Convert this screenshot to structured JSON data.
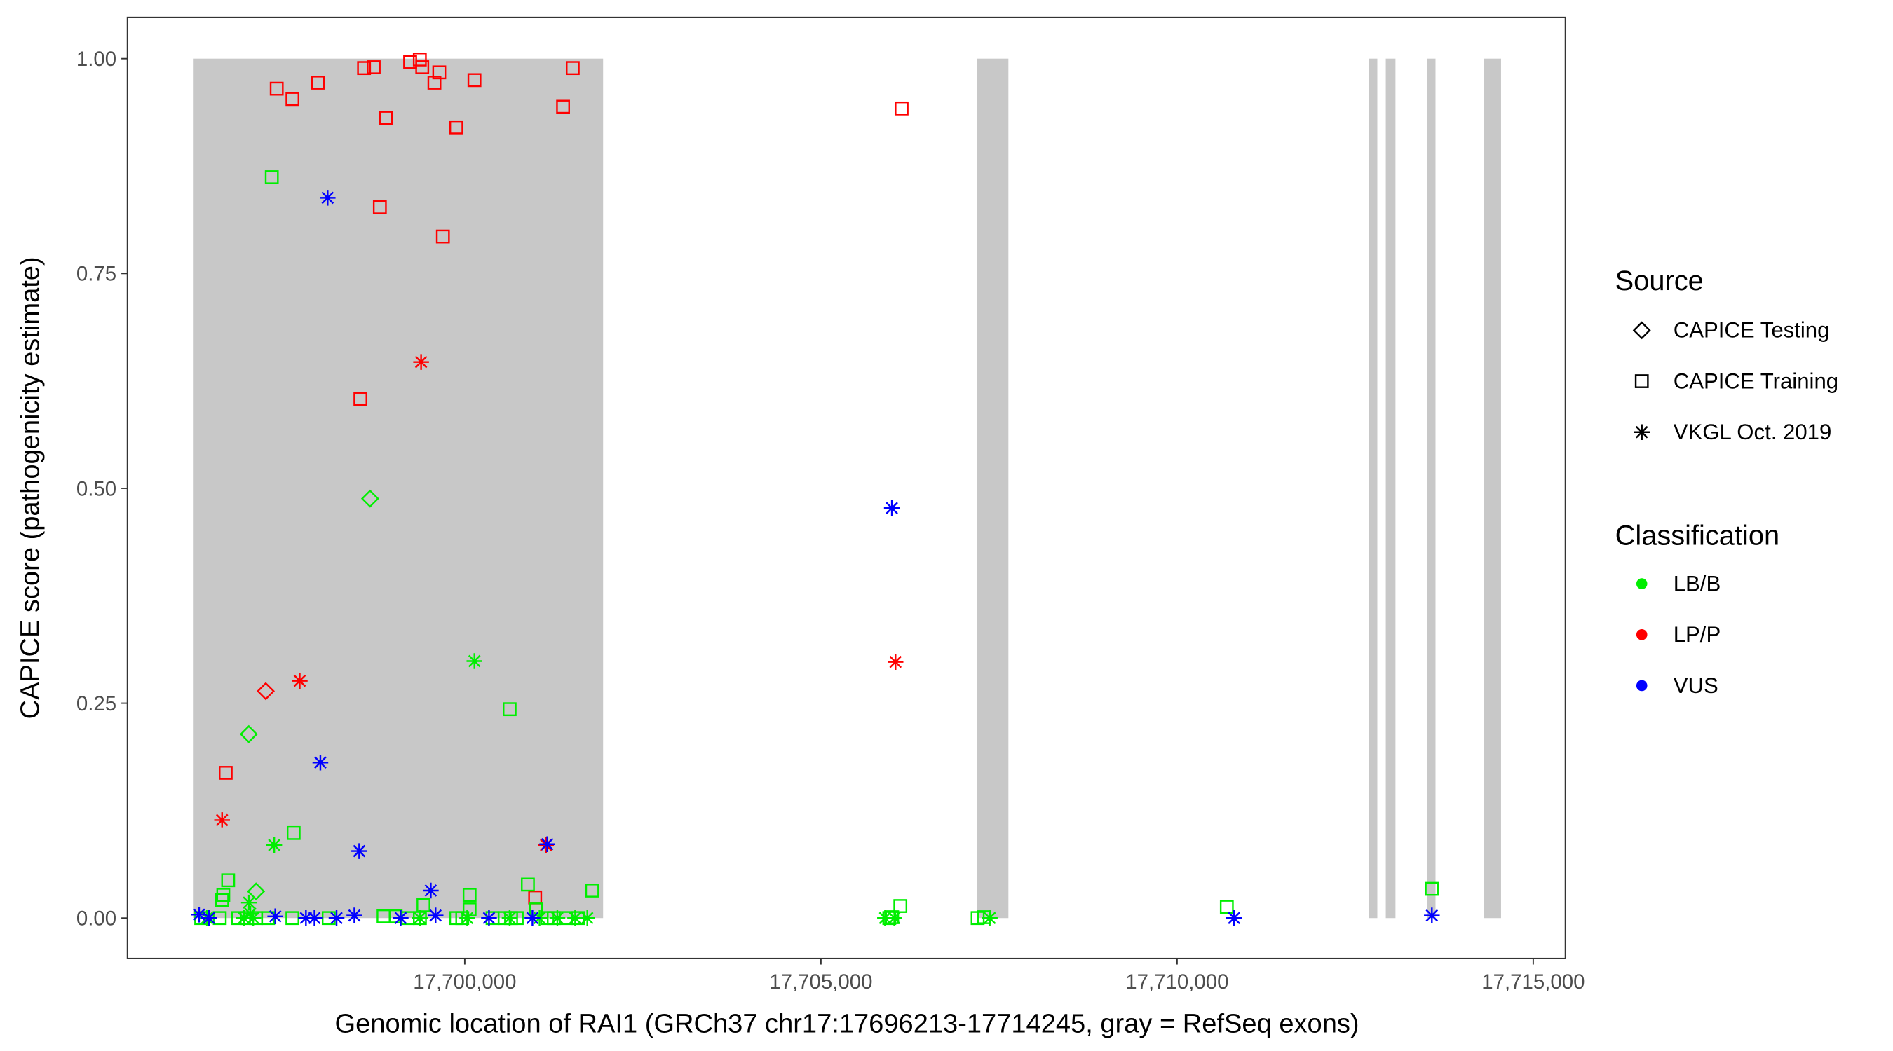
{
  "chart_data": {
    "type": "scatter",
    "title": "",
    "xlabel": "Genomic location of RAI1 (GRCh37 chr17:17696213-17714245, gray = RefSeq exons)",
    "ylabel": "CAPICE score (pathogenicity estimate)",
    "xlim": [
      17695264,
      17715451
    ],
    "ylim": [
      -0.047,
      1.048
    ],
    "xticks": [
      17700000,
      17705000,
      17710000,
      17715000
    ],
    "xtick_labels": [
      "17,700,000",
      "17,705,000",
      "17,710,000",
      "17,715,000"
    ],
    "yticks": [
      0,
      0.25,
      0.5,
      0.75,
      1.0
    ],
    "ytick_labels": [
      "0.00",
      "0.25",
      "0.50",
      "0.75",
      "1.00"
    ],
    "grid": false,
    "exons": [
      [
        17696184,
        17701942
      ],
      [
        17707189,
        17707632
      ],
      [
        17712692,
        17712811
      ],
      [
        17712930,
        17713066
      ],
      [
        17713509,
        17713628
      ],
      [
        17714310,
        17714548
      ]
    ],
    "exon_color": "#c8c8c8",
    "colors": {
      "LB/B": "#00ee00",
      "LP/P": "#ff0000",
      "VUS": "#0000ff"
    },
    "legend": {
      "placement": "right",
      "source_title": "Source",
      "source_entries": [
        {
          "label": "CAPICE Testing",
          "shape": "diamond"
        },
        {
          "label": "CAPICE Training",
          "shape": "square"
        },
        {
          "label": "VKGL Oct. 2019",
          "shape": "asterisk"
        }
      ],
      "class_title": "Classification",
      "class_entries": [
        {
          "label": "LB/B",
          "color": "#00ee00"
        },
        {
          "label": "LP/P",
          "color": "#ff0000"
        },
        {
          "label": "VUS",
          "color": "#0000ff"
        }
      ]
    },
    "points": [
      [
        17697360,
        0.965,
        "square",
        "LP/P"
      ],
      [
        17697581,
        0.953,
        "square",
        "LP/P"
      ],
      [
        17697939,
        0.972,
        "square",
        "LP/P"
      ],
      [
        17698586,
        0.989,
        "square",
        "LP/P"
      ],
      [
        17698722,
        0.99,
        "square",
        "LP/P"
      ],
      [
        17698893,
        0.931,
        "square",
        "LP/P"
      ],
      [
        17698808,
        0.827,
        "square",
        "LP/P"
      ],
      [
        17699233,
        0.996,
        "square",
        "LP/P"
      ],
      [
        17699369,
        0.999,
        "square",
        "LP/P"
      ],
      [
        17699403,
        0.99,
        "square",
        "LP/P"
      ],
      [
        17699574,
        0.972,
        "square",
        "LP/P"
      ],
      [
        17699642,
        0.984,
        "square",
        "LP/P"
      ],
      [
        17699693,
        0.793,
        "square",
        "LP/P"
      ],
      [
        17699881,
        0.92,
        "square",
        "LP/P"
      ],
      [
        17700136,
        0.975,
        "square",
        "LP/P"
      ],
      [
        17701380,
        0.944,
        "square",
        "LP/P"
      ],
      [
        17701516,
        0.989,
        "square",
        "LP/P"
      ],
      [
        17698535,
        0.604,
        "square",
        "LP/P"
      ],
      [
        17696644,
        0.169,
        "square",
        "LP/P"
      ],
      [
        17700988,
        0.024,
        "square",
        "LP/P"
      ],
      [
        17706133,
        0.942,
        "square",
        "LP/P"
      ],
      [
        17699387,
        0.647,
        "asterisk",
        "LP/P"
      ],
      [
        17697683,
        0.276,
        "asterisk",
        "LP/P"
      ],
      [
        17696593,
        0.114,
        "asterisk",
        "LP/P"
      ],
      [
        17701141,
        0.085,
        "asterisk",
        "LP/P"
      ],
      [
        17706047,
        0.298,
        "asterisk",
        "LP/P"
      ],
      [
        17697206,
        0.264,
        "diamond",
        "LP/P"
      ],
      [
        17698671,
        0.488,
        "diamond",
        "LB/B"
      ],
      [
        17696968,
        0.214,
        "diamond",
        "LB/B"
      ],
      [
        17697070,
        0.031,
        "diamond",
        "LB/B"
      ],
      [
        17697291,
        0.862,
        "square",
        "LB/B"
      ],
      [
        17697598,
        0.099,
        "square",
        "LB/B"
      ],
      [
        17700630,
        0.243,
        "square",
        "LB/B"
      ],
      [
        17696678,
        0.044,
        "square",
        "LB/B"
      ],
      [
        17696610,
        0.027,
        "square",
        "LB/B"
      ],
      [
        17696593,
        0.021,
        "square",
        "LB/B"
      ],
      [
        17700886,
        0.039,
        "square",
        "LB/B"
      ],
      [
        17701789,
        0.032,
        "square",
        "LB/B"
      ],
      [
        17700068,
        0.027,
        "square",
        "LB/B"
      ],
      [
        17700068,
        0.01,
        "square",
        "LB/B"
      ],
      [
        17699420,
        0.015,
        "square",
        "LB/B"
      ],
      [
        17701000,
        0.01,
        "square",
        "LB/B"
      ],
      [
        17706115,
        0.014,
        "square",
        "LB/B"
      ],
      [
        17710698,
        0.013,
        "square",
        "LB/B"
      ],
      [
        17713577,
        0.034,
        "square",
        "LB/B"
      ],
      [
        17707291,
        0.001,
        "square",
        "LB/B"
      ],
      [
        17706000,
        0.001,
        "square",
        "LB/B"
      ],
      [
        17696300,
        0.0,
        "square",
        "LB/B"
      ],
      [
        17696560,
        0.0,
        "square",
        "LB/B"
      ],
      [
        17696820,
        0.0,
        "square",
        "LB/B"
      ],
      [
        17696940,
        0.0,
        "square",
        "LB/B"
      ],
      [
        17697070,
        0.0,
        "square",
        "LB/B"
      ],
      [
        17697240,
        0.0,
        "square",
        "LB/B"
      ],
      [
        17697580,
        0.0,
        "square",
        "LB/B"
      ],
      [
        17698090,
        0.0,
        "square",
        "LB/B"
      ],
      [
        17698860,
        0.002,
        "square",
        "LB/B"
      ],
      [
        17699030,
        0.002,
        "square",
        "LB/B"
      ],
      [
        17699200,
        0.0,
        "square",
        "LB/B"
      ],
      [
        17699370,
        0.0,
        "square",
        "LB/B"
      ],
      [
        17699880,
        0.0,
        "square",
        "LB/B"
      ],
      [
        17699965,
        0.0,
        "square",
        "LB/B"
      ],
      [
        17700390,
        0.0,
        "square",
        "LB/B"
      ],
      [
        17700560,
        0.0,
        "square",
        "LB/B"
      ],
      [
        17700650,
        0.0,
        "square",
        "LB/B"
      ],
      [
        17700730,
        0.0,
        "square",
        "LB/B"
      ],
      [
        17701160,
        0.0,
        "square",
        "LB/B"
      ],
      [
        17701250,
        0.0,
        "square",
        "LB/B"
      ],
      [
        17701420,
        0.0,
        "square",
        "LB/B"
      ],
      [
        17701590,
        0.0,
        "square",
        "LB/B"
      ],
      [
        17705960,
        0.0,
        "square",
        "LB/B"
      ],
      [
        17707200,
        0.0,
        "square",
        "LB/B"
      ],
      [
        17700136,
        0.299,
        "asterisk",
        "LB/B"
      ],
      [
        17697325,
        0.085,
        "asterisk",
        "LB/B"
      ],
      [
        17696970,
        0.018,
        "asterisk",
        "LB/B"
      ],
      [
        17696380,
        0.0,
        "asterisk",
        "LB/B"
      ],
      [
        17696900,
        0.0,
        "asterisk",
        "LB/B"
      ],
      [
        17696990,
        0.005,
        "asterisk",
        "LB/B"
      ],
      [
        17697030,
        0.0,
        "asterisk",
        "LB/B"
      ],
      [
        17699369,
        0.0,
        "asterisk",
        "LB/B"
      ],
      [
        17700034,
        0.0,
        "asterisk",
        "LB/B"
      ],
      [
        17700630,
        0.0,
        "asterisk",
        "LB/B"
      ],
      [
        17701050,
        0.0,
        "asterisk",
        "LB/B"
      ],
      [
        17701300,
        0.0,
        "asterisk",
        "LB/B"
      ],
      [
        17701550,
        0.0,
        "asterisk",
        "LB/B"
      ],
      [
        17701720,
        0.0,
        "asterisk",
        "LB/B"
      ],
      [
        17705900,
        0.0,
        "asterisk",
        "LB/B"
      ],
      [
        17706030,
        0.0,
        "asterisk",
        "LB/B"
      ],
      [
        17707370,
        0.0,
        "asterisk",
        "LB/B"
      ],
      [
        17698075,
        0.838,
        "asterisk",
        "VUS"
      ],
      [
        17697973,
        0.181,
        "asterisk",
        "VUS"
      ],
      [
        17698518,
        0.078,
        "asterisk",
        "VUS"
      ],
      [
        17699523,
        0.032,
        "asterisk",
        "VUS"
      ],
      [
        17701158,
        0.086,
        "asterisk",
        "VUS"
      ],
      [
        17705996,
        0.477,
        "asterisk",
        "VUS"
      ],
      [
        17710800,
        0.0,
        "asterisk",
        "VUS"
      ],
      [
        17713577,
        0.003,
        "asterisk",
        "VUS"
      ],
      [
        17696270,
        0.004,
        "asterisk",
        "VUS"
      ],
      [
        17696410,
        0.0,
        "asterisk",
        "VUS"
      ],
      [
        17697340,
        0.002,
        "asterisk",
        "VUS"
      ],
      [
        17697770,
        0.0,
        "asterisk",
        "VUS"
      ],
      [
        17697890,
        0.0,
        "asterisk",
        "VUS"
      ],
      [
        17698200,
        0.0,
        "asterisk",
        "VUS"
      ],
      [
        17698450,
        0.003,
        "asterisk",
        "VUS"
      ],
      [
        17699100,
        0.0,
        "asterisk",
        "VUS"
      ],
      [
        17699590,
        0.003,
        "asterisk",
        "VUS"
      ],
      [
        17700340,
        0.0,
        "asterisk",
        "VUS"
      ],
      [
        17700950,
        0.0,
        "asterisk",
        "VUS"
      ]
    ]
  }
}
